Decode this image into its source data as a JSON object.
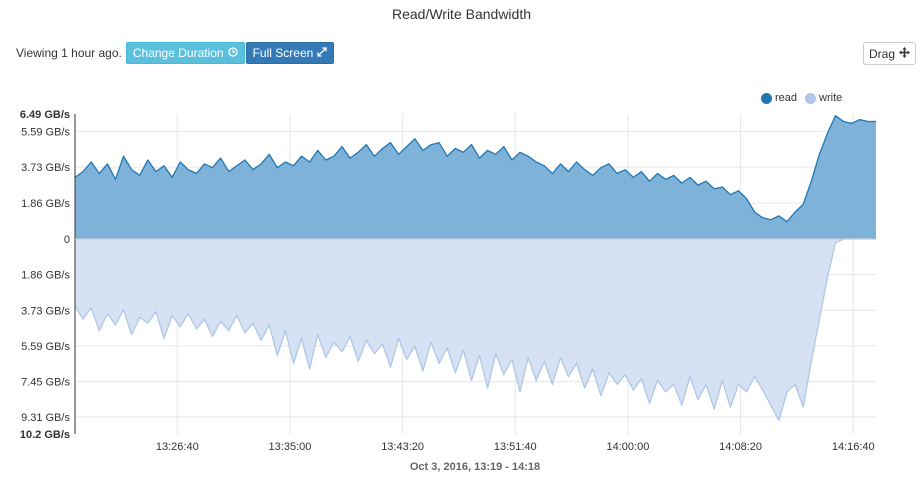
{
  "header": {
    "title": "Read/Write Bandwidth"
  },
  "toolbar": {
    "viewing_text": "Viewing 1 hour ago.",
    "change_duration_label": "Change Duration",
    "full_screen_label": "Full Screen",
    "drag_label": "Drag"
  },
  "colors": {
    "read_line": "#1f77b4",
    "read_fill": "#7fb2d9",
    "write_line": "#aec7e8",
    "write_fill": "#d6e2f3",
    "btn_info": "#5bc0de",
    "btn_primary": "#337ab7"
  },
  "chart_data": {
    "type": "area",
    "xlabel": "Oct 3, 2016, 13:19 - 14:18",
    "x_ticks": [
      "13:26:40",
      "13:35:00",
      "13:43:20",
      "13:51:40",
      "14:00:00",
      "14:08:20",
      "14:16:40"
    ],
    "x_range": [
      "13:19:06",
      "14:18:21"
    ],
    "y_ticks_top": [
      "6.49 GB/s",
      "5.59 GB/s",
      "3.73 GB/s",
      "1.86 GB/s",
      "0"
    ],
    "y_ticks_bottom": [
      "1.86 GB/s",
      "3.73 GB/s",
      "5.59 GB/s",
      "7.45 GB/s",
      "9.31 GB/s",
      "10.2 GB/s"
    ],
    "y_range_read_gbs": [
      0,
      6.49
    ],
    "y_range_write_gbs": [
      0,
      10.2
    ],
    "legend_position": "top-right",
    "series": [
      {
        "name": "read",
        "unit": "GB/s",
        "values": [
          3.2,
          3.5,
          4.0,
          3.4,
          3.9,
          3.1,
          4.3,
          3.6,
          3.3,
          4.1,
          3.5,
          3.8,
          3.2,
          4.0,
          3.6,
          3.4,
          3.9,
          3.7,
          4.2,
          3.5,
          3.8,
          4.1,
          3.6,
          3.9,
          4.4,
          3.7,
          4.0,
          3.8,
          4.3,
          4.0,
          4.6,
          4.1,
          4.3,
          4.8,
          4.2,
          4.5,
          4.9,
          4.3,
          4.7,
          5.0,
          4.4,
          4.8,
          5.2,
          4.6,
          4.9,
          5.0,
          4.3,
          4.7,
          4.5,
          4.9,
          4.2,
          4.6,
          4.4,
          4.8,
          4.1,
          4.5,
          4.3,
          4.0,
          3.8,
          3.4,
          3.9,
          3.5,
          4.0,
          3.6,
          3.3,
          3.7,
          3.9,
          3.4,
          3.6,
          3.2,
          3.5,
          3.0,
          3.4,
          3.1,
          3.3,
          2.9,
          3.2,
          2.8,
          3.0,
          2.6,
          2.7,
          2.3,
          2.5,
          2.1,
          1.4,
          1.1,
          1.0,
          1.2,
          0.9,
          1.4,
          1.8,
          3.0,
          4.4,
          5.5,
          6.4,
          6.1,
          6.0,
          6.2,
          6.1,
          6.1
        ]
      },
      {
        "name": "write",
        "unit": "GB/s",
        "values": [
          3.5,
          4.2,
          3.6,
          4.8,
          3.9,
          4.5,
          3.7,
          5.0,
          4.1,
          4.4,
          3.8,
          5.2,
          4.0,
          4.6,
          3.9,
          4.7,
          4.2,
          5.1,
          4.3,
          4.8,
          4.0,
          4.9,
          4.4,
          5.3,
          4.5,
          6.1,
          4.8,
          6.5,
          5.2,
          6.8,
          5.0,
          6.2,
          5.4,
          5.9,
          5.1,
          6.4,
          5.3,
          6.0,
          5.5,
          6.7,
          5.2,
          6.3,
          5.6,
          6.9,
          5.4,
          6.5,
          5.7,
          7.0,
          5.8,
          7.4,
          6.1,
          7.8,
          6.0,
          7.1,
          6.3,
          8.0,
          6.2,
          7.4,
          6.4,
          7.6,
          6.2,
          7.2,
          6.5,
          7.8,
          6.8,
          8.2,
          7.0,
          7.6,
          7.1,
          7.9,
          7.3,
          8.6,
          7.4,
          8.0,
          7.6,
          8.7,
          7.2,
          8.4,
          7.6,
          8.9,
          7.4,
          8.8,
          7.6,
          8.0,
          7.2,
          7.9,
          8.7,
          9.5,
          8.0,
          7.6,
          8.8,
          6.4,
          4.2,
          2.0,
          0.2,
          0,
          0,
          0,
          0,
          0
        ]
      }
    ]
  }
}
